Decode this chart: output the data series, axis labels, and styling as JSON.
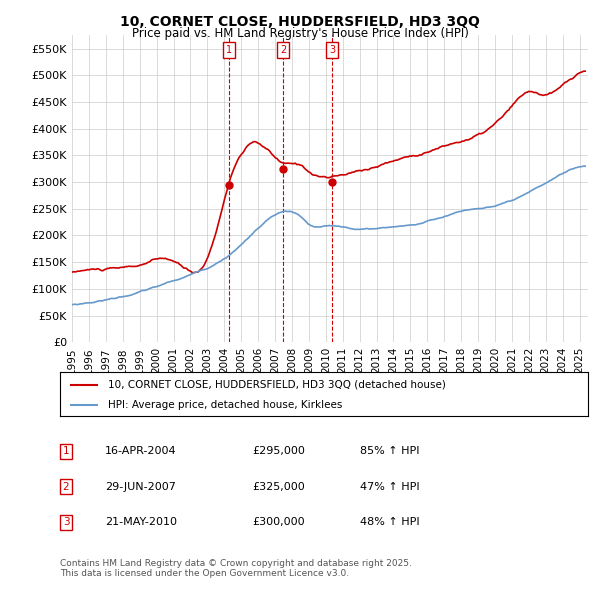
{
  "title": "10, CORNET CLOSE, HUDDERSFIELD, HD3 3QQ",
  "subtitle": "Price paid vs. HM Land Registry's House Price Index (HPI)",
  "ylabel": "",
  "ylim": [
    0,
    575000
  ],
  "yticks": [
    0,
    50000,
    100000,
    150000,
    200000,
    250000,
    300000,
    350000,
    400000,
    450000,
    500000,
    550000
  ],
  "ytick_labels": [
    "£0",
    "£50K",
    "£100K",
    "£150K",
    "£200K",
    "£250K",
    "£300K",
    "£350K",
    "£400K",
    "£450K",
    "£500K",
    "£550K"
  ],
  "xlim_start": 1995.0,
  "xlim_end": 2025.5,
  "xticks": [
    1995,
    1996,
    1997,
    1998,
    1999,
    2000,
    2001,
    2002,
    2003,
    2004,
    2005,
    2006,
    2007,
    2008,
    2009,
    2010,
    2011,
    2012,
    2013,
    2014,
    2015,
    2016,
    2017,
    2018,
    2019,
    2020,
    2021,
    2022,
    2023,
    2024,
    2025
  ],
  "red_color": "#cc0000",
  "blue_color": "#6699cc",
  "marker_color": "#cc0000",
  "vline_color": "#cc0000",
  "sales": [
    {
      "num": 1,
      "year": 2004.29,
      "price": 295000
    },
    {
      "num": 2,
      "year": 2007.49,
      "price": 325000
    },
    {
      "num": 3,
      "year": 2010.39,
      "price": 300000
    }
  ],
  "legend_label_red": "10, CORNET CLOSE, HUDDERSFIELD, HD3 3QQ (detached house)",
  "legend_label_blue": "HPI: Average price, detached house, Kirklees",
  "table_rows": [
    {
      "num": 1,
      "date": "16-APR-2004",
      "price": "£295,000",
      "hpi": "85% ↑ HPI"
    },
    {
      "num": 2,
      "date": "29-JUN-2007",
      "price": "£325,000",
      "hpi": "47% ↑ HPI"
    },
    {
      "num": 3,
      "date": "21-MAY-2010",
      "price": "£300,000",
      "hpi": "48% ↑ HPI"
    }
  ],
  "footnote": "Contains HM Land Registry data © Crown copyright and database right 2025.\nThis data is licensed under the Open Government Licence v3.0.",
  "bg_color": "#ffffff",
  "grid_color": "#cccccc"
}
